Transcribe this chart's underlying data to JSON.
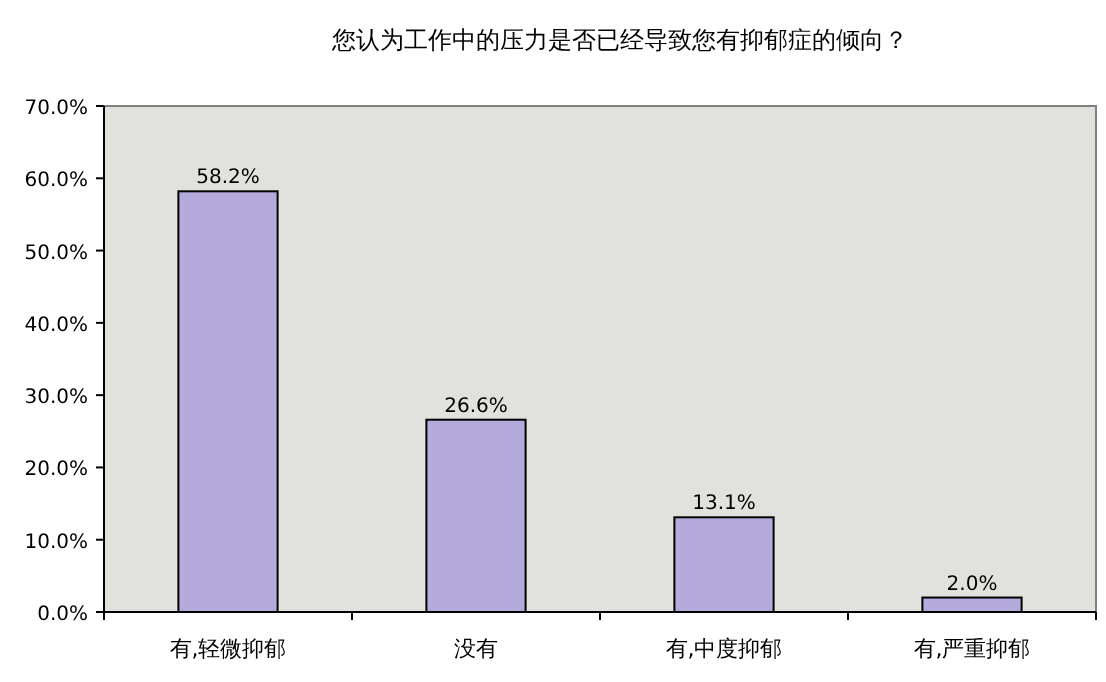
{
  "chart_data": {
    "type": "bar",
    "title": "您认为工作中的压力是否已经导致您有抑郁症的倾向？",
    "categories": [
      "有,轻微抑郁",
      "没有",
      "有,中度抑郁",
      "有,严重抑郁"
    ],
    "values": [
      58.2,
      26.6,
      13.1,
      2.0
    ],
    "value_labels": [
      "58.2%",
      "26.6%",
      "13.1%",
      "2.0%"
    ],
    "color": "#b4aadc",
    "ylim": [
      0,
      70
    ],
    "yticks": [
      {
        "value": 0,
        "label": "0.0%"
      },
      {
        "value": 10,
        "label": "10.0%"
      },
      {
        "value": 20,
        "label": "20.0%"
      },
      {
        "value": 30,
        "label": "30.0%"
      },
      {
        "value": 40,
        "label": "40.0%"
      },
      {
        "value": 50,
        "label": "50.0%"
      },
      {
        "value": 60,
        "label": "60.0%"
      },
      {
        "value": 70,
        "label": "70.0%"
      }
    ],
    "grid": false
  }
}
